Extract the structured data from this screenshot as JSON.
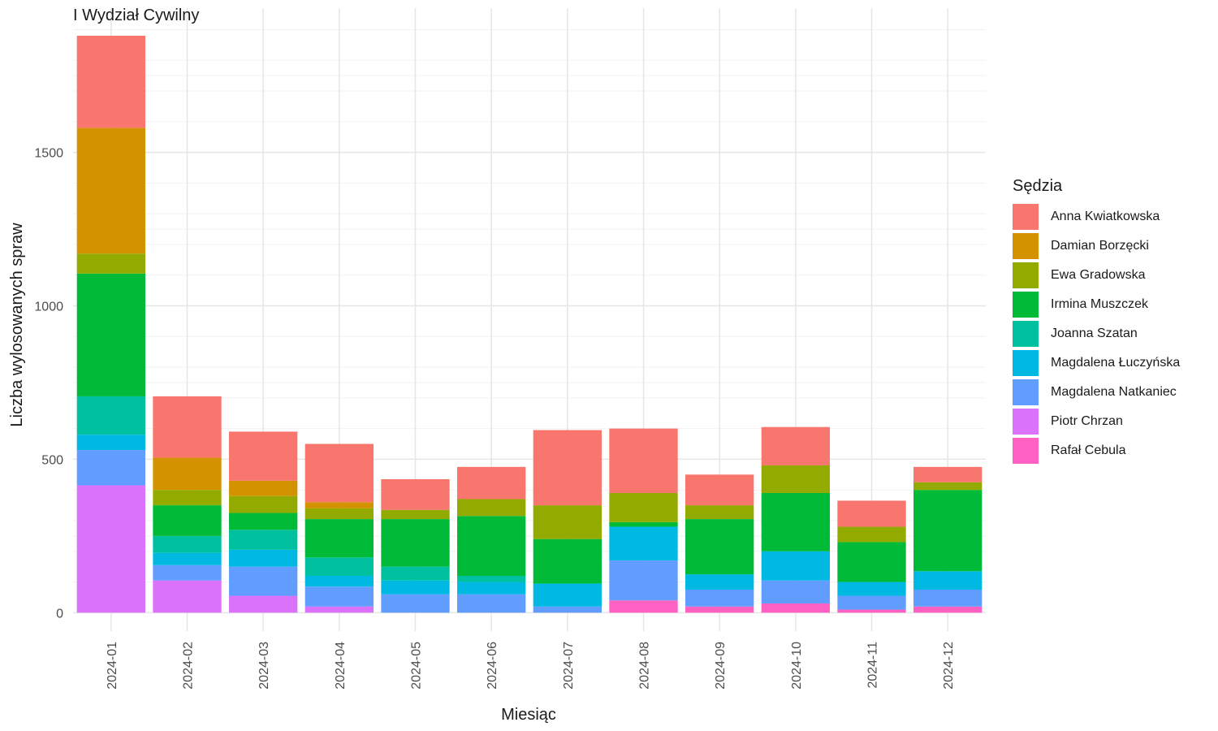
{
  "chart_data": {
    "type": "bar",
    "stacked": true,
    "title": "I Wydział Cywilny",
    "xlabel": "Miesiąc",
    "ylabel": "Liczba wylosowanych spraw",
    "ylim": [
      -60,
      1970
    ],
    "yticks": [
      0,
      500,
      1000,
      1500
    ],
    "grid": true,
    "legend_position": "right",
    "legend_title": "Sędzia",
    "categories": [
      "2024-01",
      "2024-02",
      "2024-03",
      "2024-04",
      "2024-05",
      "2024-06",
      "2024-07",
      "2024-08",
      "2024-09",
      "2024-10",
      "2024-11",
      "2024-12"
    ],
    "series": [
      {
        "name": "Anna Kwiatkowska",
        "color": "#F8766D",
        "values": [
          300,
          200,
          160,
          190,
          100,
          105,
          245,
          210,
          100,
          125,
          85,
          50
        ]
      },
      {
        "name": "Damian Borzęcki",
        "color": "#D39200",
        "values": [
          410,
          105,
          50,
          20,
          0,
          0,
          0,
          0,
          0,
          0,
          0,
          0
        ]
      },
      {
        "name": "Ewa Gradowska",
        "color": "#93AA00",
        "values": [
          65,
          50,
          55,
          35,
          30,
          55,
          110,
          95,
          45,
          90,
          50,
          25
        ]
      },
      {
        "name": "Irmina Muszczek",
        "color": "#00BA38",
        "values": [
          400,
          100,
          55,
          125,
          155,
          195,
          145,
          15,
          180,
          190,
          130,
          265
        ]
      },
      {
        "name": "Joanna Szatan",
        "color": "#00C19F",
        "values": [
          125,
          55,
          65,
          60,
          45,
          20,
          0,
          0,
          0,
          0,
          0,
          0
        ]
      },
      {
        "name": "Magdalena Łuczyńska",
        "color": "#00B9E3",
        "values": [
          50,
          40,
          55,
          35,
          45,
          40,
          75,
          110,
          50,
          95,
          45,
          60
        ]
      },
      {
        "name": "Magdalena Natkaniec",
        "color": "#619CFF",
        "values": [
          115,
          50,
          95,
          65,
          60,
          60,
          20,
          130,
          55,
          75,
          45,
          55
        ]
      },
      {
        "name": "Piotr Chrzan",
        "color": "#DB72FB",
        "values": [
          415,
          105,
          55,
          20,
          0,
          0,
          0,
          0,
          0,
          0,
          0,
          0
        ]
      },
      {
        "name": "Rafał Cebula",
        "color": "#FF61C3",
        "values": [
          0,
          0,
          0,
          0,
          0,
          0,
          0,
          40,
          20,
          30,
          10,
          20
        ]
      }
    ]
  }
}
